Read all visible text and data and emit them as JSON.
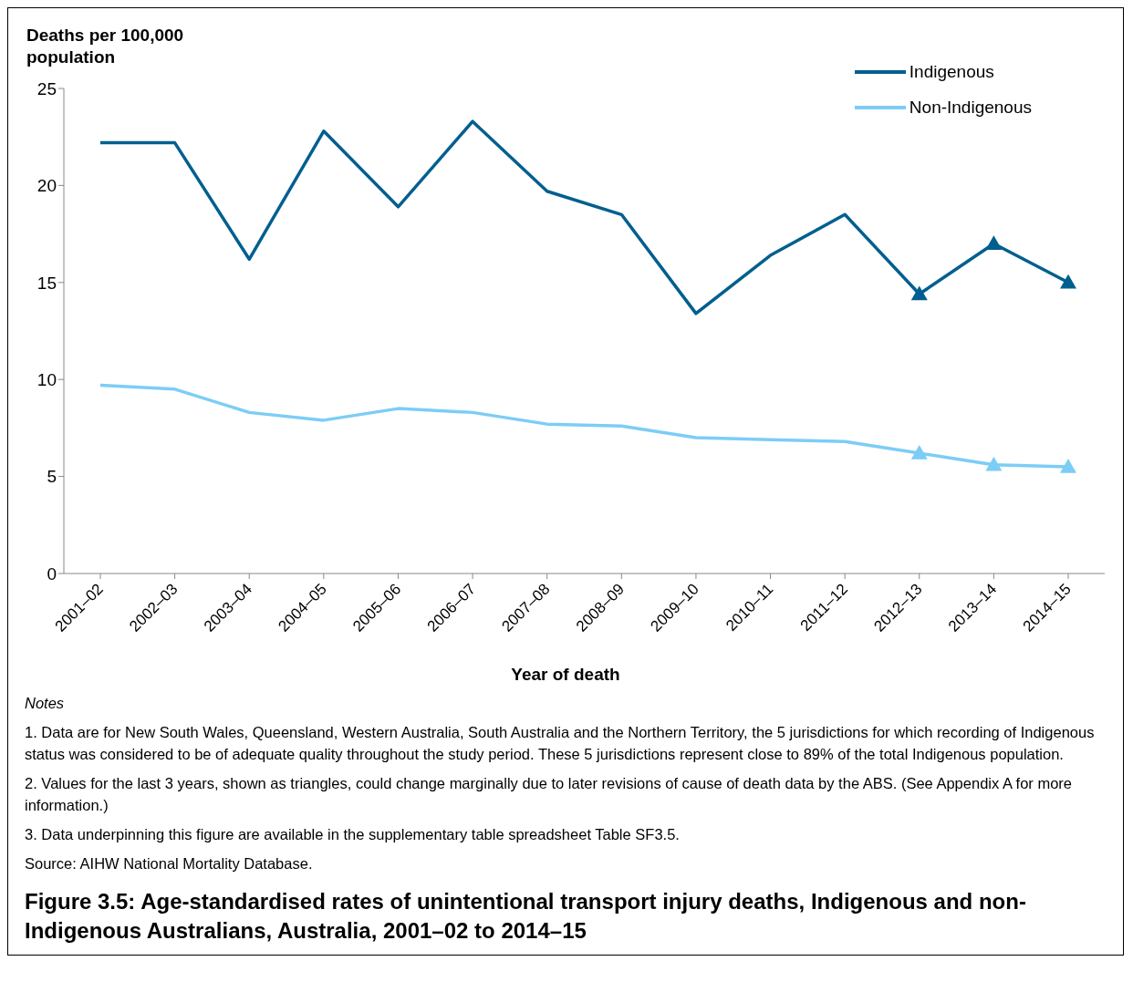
{
  "chart_data": {
    "type": "line",
    "title": "Figure 3.5: Age-standardised rates of unintentional transport injury deaths, Indigenous and non-Indigenous Australians, Australia, 2001–02 to 2014–15",
    "xlabel": "Year of death",
    "ylabel": "Deaths per 100,000 population",
    "categories": [
      "2001–02",
      "2002–03",
      "2003–04",
      "2004–05",
      "2005–06",
      "2006–07",
      "2007–08",
      "2008–09",
      "2009–10",
      "2010–11",
      "2011–12",
      "2012–13",
      "2013–14",
      "2014–15"
    ],
    "series": [
      {
        "name": "Indigenous",
        "color": "#005f8f",
        "values": [
          22.2,
          22.2,
          16.2,
          22.8,
          18.9,
          23.3,
          19.7,
          18.5,
          13.4,
          16.4,
          18.5,
          14.4,
          17.0,
          15.0
        ]
      },
      {
        "name": "Non-Indigenous",
        "color": "#7ccdf6",
        "values": [
          9.7,
          9.5,
          8.3,
          7.9,
          8.5,
          8.3,
          7.7,
          7.6,
          7.0,
          6.9,
          6.8,
          6.2,
          5.6,
          5.5
        ]
      },
      {
        "type": "scatter",
        "color": "#005f8f",
        "marker": "triangle",
        "x": [
          "2012–13",
          "2013–14",
          "2014–15"
        ],
        "values": [
          14.4,
          17.0,
          15.0
        ]
      },
      {
        "type": "scatter",
        "color": "#7ccdf6",
        "marker": "triangle",
        "x": [
          "2012–13",
          "2013–14",
          "2014–15"
        ],
        "values": [
          6.2,
          5.6,
          5.5
        ]
      }
    ],
    "ylim": [
      0,
      25
    ],
    "yticks": [
      0,
      5,
      10,
      15,
      20,
      25
    ],
    "grid": false,
    "legend": "top right",
    "marker": "none",
    "line_style": "solid",
    "annotations": [
      "Notes",
      "1. Data are for New South Wales, Queensland, Western Australia, South Australia and the Northern Territory, the 5 jurisdictions for which recording of Indigenous status was considered to be of adequate quality throughout the study period. These 5 jurisdictions represent close to 89% of the total Indigenous population.",
      "2. Values for the last 3 years, shown as triangles, could change marginally due to later revisions of cause of death data by the ABS. (See Appendix A for more information.)",
      "3. Data underpinning this figure are available in the supplementary table spreadsheet Table SF3.5.",
      "Source: AIHW National Mortality Database."
    ]
  }
}
